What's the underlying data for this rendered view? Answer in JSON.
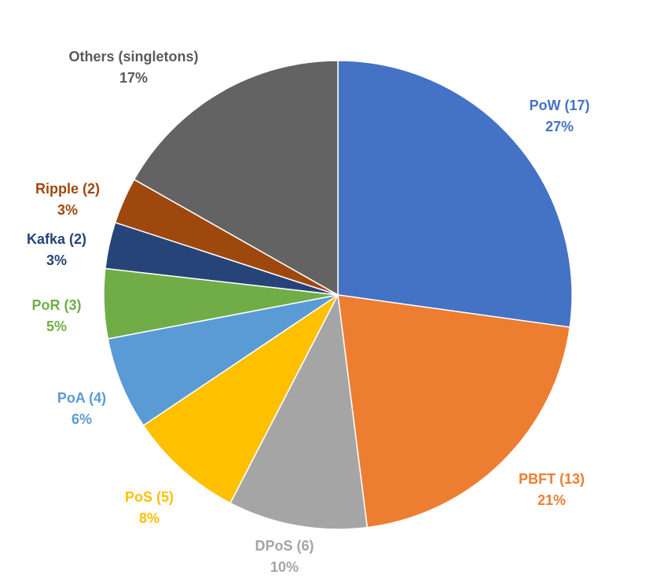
{
  "chart_data": {
    "type": "pie",
    "start_angle_deg": 0,
    "direction": "clockwise",
    "slices": [
      {
        "label": "PoW (17)",
        "pct_label": "27%",
        "value": 17,
        "color": "#4472C4"
      },
      {
        "label": "PBFT (13)",
        "pct_label": "21%",
        "value": 13,
        "color": "#ED7D31"
      },
      {
        "label": "DPoS (6)",
        "pct_label": "10%",
        "value": 6,
        "color": "#A5A5A5"
      },
      {
        "label": "PoS (5)",
        "pct_label": "8%",
        "value": 5,
        "color": "#FFC000"
      },
      {
        "label": "PoA (4)",
        "pct_label": "6%",
        "value": 4,
        "color": "#5B9BD5"
      },
      {
        "label": "PoR (3)",
        "pct_label": "5%",
        "value": 3,
        "color": "#70AD47"
      },
      {
        "label": "Kafka (2)",
        "pct_label": "3%",
        "value": 2,
        "color": "#264478"
      },
      {
        "label": "Ripple (2)",
        "pct_label": "3%",
        "value": 2,
        "color": "#9E480E"
      },
      {
        "label": "Others (singletons)",
        "pct_label": "17%",
        "value": 10.5,
        "color": "#636363"
      }
    ],
    "label_colors": [
      "#4472C4",
      "#ED7D31",
      "#A5A5A5",
      "#FFC000",
      "#5B9BD5",
      "#70AD47",
      "#264478",
      "#9E480E",
      "#595959"
    ]
  }
}
